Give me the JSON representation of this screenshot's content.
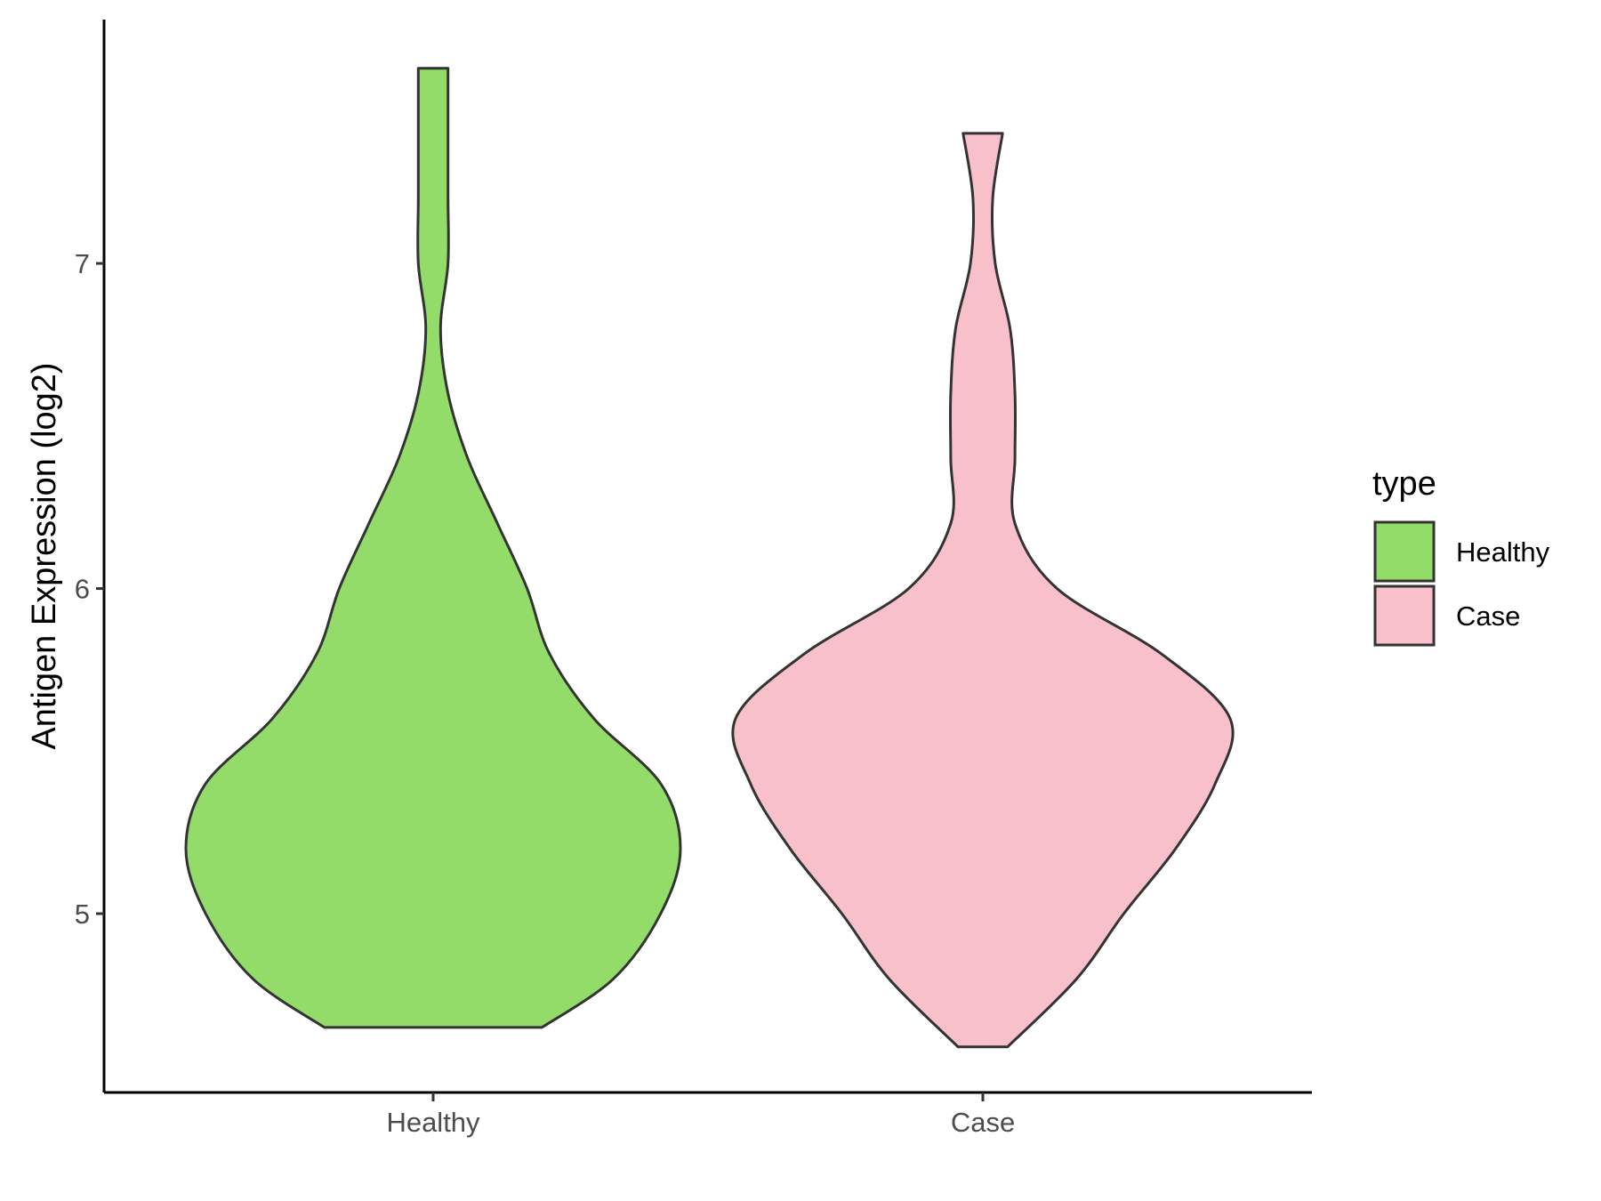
{
  "chart_data": {
    "type": "violin",
    "title": "",
    "xlabel": "",
    "ylabel": "Antigen Expression (log2)",
    "categories": [
      "Healthy",
      "Case"
    ],
    "y_ticks": [
      5,
      6,
      7
    ],
    "y_tick_labels": [
      "5",
      "6",
      "7"
    ],
    "ylim": [
      4.45,
      7.75
    ],
    "grid": false,
    "legend": {
      "title": "type",
      "placement": "right",
      "entries": [
        "Healthy",
        "Case"
      ]
    },
    "series": [
      {
        "name": "Healthy",
        "color": "#93DC6A",
        "min": 4.65,
        "max": 7.6,
        "density": [
          [
            4.65,
            0.44
          ],
          [
            4.8,
            0.73
          ],
          [
            5.0,
            0.92
          ],
          [
            5.2,
            1.0
          ],
          [
            5.4,
            0.92
          ],
          [
            5.6,
            0.65
          ],
          [
            5.8,
            0.47
          ],
          [
            6.0,
            0.38
          ],
          [
            6.2,
            0.26
          ],
          [
            6.4,
            0.14
          ],
          [
            6.6,
            0.06
          ],
          [
            6.8,
            0.03
          ],
          [
            7.0,
            0.06
          ],
          [
            7.2,
            0.06
          ],
          [
            7.4,
            0.06
          ],
          [
            7.6,
            0.06
          ]
        ]
      },
      {
        "name": "Case",
        "color": "#F8C0CB",
        "min": 4.59,
        "max": 7.4,
        "density": [
          [
            4.59,
            0.1
          ],
          [
            4.8,
            0.38
          ],
          [
            5.0,
            0.57
          ],
          [
            5.2,
            0.78
          ],
          [
            5.4,
            0.94
          ],
          [
            5.6,
            1.0
          ],
          [
            5.8,
            0.72
          ],
          [
            6.0,
            0.3
          ],
          [
            6.2,
            0.13
          ],
          [
            6.4,
            0.13
          ],
          [
            6.6,
            0.13
          ],
          [
            6.8,
            0.11
          ],
          [
            7.0,
            0.05
          ],
          [
            7.2,
            0.04
          ],
          [
            7.4,
            0.08
          ]
        ]
      }
    ],
    "colors": {
      "outline": "#333333",
      "axis": "#000000"
    }
  }
}
